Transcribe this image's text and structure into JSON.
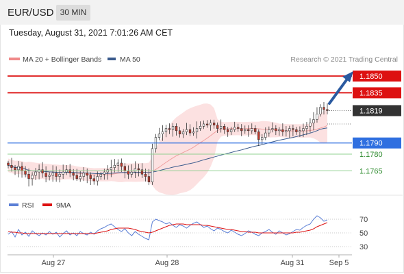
{
  "header": {
    "pair": "EUR/USD",
    "timeframe": "30 MIN"
  },
  "datetime": "Tuesday, August 31, 2021 7:01:26 AM CET",
  "copyright": "Research © 2021 Trading Central",
  "legend": [
    {
      "label": "MA 20 + Bollinger Bands",
      "color": "#f08a8a"
    },
    {
      "label": "MA 50",
      "color": "#3a5a8c"
    }
  ],
  "rsi_legend": [
    {
      "label": "RSI",
      "color": "#5b7fd6"
    },
    {
      "label": "9MA",
      "color": "#dd1111"
    }
  ],
  "chart_data": [
    {
      "type": "candlestick",
      "title": "",
      "y_range": [
        1.1745,
        1.1858
      ],
      "x_ticks": [
        "Aug 27",
        "Aug 28",
        "Aug 31",
        "Sep 5"
      ],
      "levels": [
        {
          "value": 1.185,
          "label": "1.1850",
          "kind": "resistance",
          "color": "#dd1111"
        },
        {
          "value": 1.1835,
          "label": "1.1835",
          "kind": "resistance",
          "color": "#dd1111"
        },
        {
          "value": 1.1819,
          "label": "1.1819",
          "kind": "last price",
          "color": "#333333"
        },
        {
          "value": 1.179,
          "label": "1.1790",
          "kind": "pivot",
          "color": "#2f6fe0"
        },
        {
          "value": 1.178,
          "label": "1.1780",
          "kind": "support",
          "color": "#2e9e2e"
        },
        {
          "value": 1.1765,
          "label": "1.1765",
          "kind": "support",
          "color": "#2e9e2e"
        }
      ],
      "close_series": [
        1.177,
        1.1768,
        1.1766,
        1.1769,
        1.1765,
        1.1762,
        1.1758,
        1.1761,
        1.1764,
        1.1766,
        1.1763,
        1.176,
        1.1761,
        1.1763,
        1.176,
        1.1762,
        1.1764,
        1.1766,
        1.1763,
        1.1761,
        1.1758,
        1.176,
        1.1763,
        1.1761,
        1.1758,
        1.1756,
        1.176,
        1.1762,
        1.1764,
        1.1766,
        1.1768,
        1.177,
        1.1772,
        1.1769,
        1.1765,
        1.1762,
        1.1764,
        1.1767,
        1.1766,
        1.1762,
        1.176,
        1.1755,
        1.1785,
        1.1795,
        1.1798,
        1.18,
        1.1803,
        1.1802,
        1.1805,
        1.1801,
        1.1798,
        1.18,
        1.1802,
        1.1799,
        1.18,
        1.1803,
        1.1805,
        1.1807,
        1.1806,
        1.1808,
        1.1806,
        1.1803,
        1.1805,
        1.1802,
        1.18,
        1.1802,
        1.1804,
        1.1803,
        1.1801,
        1.1802,
        1.1801,
        1.1803,
        1.18,
        1.1793,
        1.1795,
        1.1799,
        1.1802,
        1.1803,
        1.1801,
        1.1802,
        1.18,
        1.1801,
        1.1803,
        1.1802,
        1.18,
        1.1801,
        1.1803,
        1.1805,
        1.1808,
        1.1811,
        1.1816,
        1.1822,
        1.182,
        1.1819
      ],
      "rsi_series": {
        "rsi": [
          48,
          52,
          44,
          55,
          47,
          51,
          45,
          53,
          49,
          46,
          50,
          47,
          52,
          48,
          51,
          44,
          49,
          53,
          47,
          50,
          46,
          52,
          49,
          47,
          51,
          48,
          53,
          56,
          58,
          61,
          63,
          59,
          55,
          52,
          56,
          50,
          46,
          52,
          48,
          45,
          42,
          40,
          66,
          70,
          68,
          66,
          63,
          65,
          61,
          58,
          62,
          60,
          57,
          61,
          64,
          66,
          62,
          58,
          60,
          56,
          53,
          57,
          55,
          52,
          50,
          54,
          51,
          48,
          46,
          49,
          53,
          51,
          48,
          46,
          50,
          52,
          55,
          51,
          48,
          53,
          50,
          47,
          49,
          52,
          55,
          54,
          58,
          61,
          63,
          70,
          75,
          72,
          67,
          69
        ],
        "ma9": [
          52,
          51,
          51,
          50,
          50,
          49,
          49,
          49,
          49,
          49,
          49,
          49,
          49,
          49,
          49,
          49,
          49,
          49,
          49,
          49,
          49,
          49,
          49,
          49,
          49,
          49,
          50,
          51,
          52,
          53,
          55,
          56,
          57,
          57,
          57,
          57,
          56,
          55,
          53,
          52,
          51,
          50,
          51,
          53,
          55,
          57,
          59,
          61,
          62,
          63,
          63,
          63,
          62,
          62,
          62,
          62,
          62,
          61,
          61,
          60,
          59,
          58,
          57,
          56,
          55,
          55,
          54,
          53,
          52,
          52,
          51,
          51,
          51,
          50,
          50,
          50,
          50,
          50,
          50,
          50,
          50,
          50,
          50,
          50,
          51,
          51,
          52,
          53,
          54,
          56,
          59,
          61,
          63,
          65
        ],
        "levels": [
          70,
          50,
          30
        ],
        "y_range": [
          20,
          80
        ]
      }
    }
  ]
}
